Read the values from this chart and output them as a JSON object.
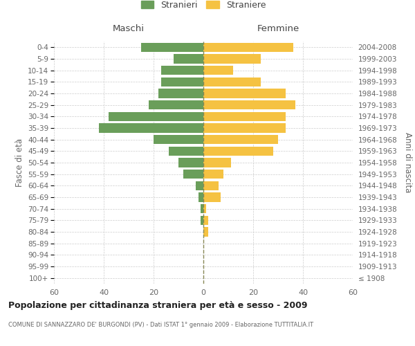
{
  "age_groups": [
    "100+",
    "95-99",
    "90-94",
    "85-89",
    "80-84",
    "75-79",
    "70-74",
    "65-69",
    "60-64",
    "55-59",
    "50-54",
    "45-49",
    "40-44",
    "35-39",
    "30-34",
    "25-29",
    "20-24",
    "15-19",
    "10-14",
    "5-9",
    "0-4"
  ],
  "birth_years": [
    "≤ 1908",
    "1909-1913",
    "1914-1918",
    "1919-1923",
    "1924-1928",
    "1929-1933",
    "1934-1938",
    "1939-1943",
    "1944-1948",
    "1949-1953",
    "1954-1958",
    "1959-1963",
    "1964-1968",
    "1969-1973",
    "1974-1978",
    "1979-1983",
    "1984-1988",
    "1989-1993",
    "1994-1998",
    "1999-2003",
    "2004-2008"
  ],
  "maschi": [
    0,
    0,
    0,
    0,
    0,
    1,
    1,
    2,
    3,
    8,
    10,
    14,
    20,
    42,
    38,
    22,
    18,
    17,
    17,
    12,
    25
  ],
  "femmine": [
    0,
    0,
    0,
    0,
    2,
    2,
    1,
    7,
    6,
    8,
    11,
    28,
    30,
    33,
    33,
    37,
    33,
    23,
    12,
    23,
    36
  ],
  "color_maschi": "#6a9e5a",
  "color_femmine": "#f5c242",
  "xlim": 60,
  "title": "Popolazione per cittadinanza straniera per età e sesso - 2009",
  "subtitle": "COMUNE DI SANNAZZARO DE' BURGONDI (PV) - Dati ISTAT 1° gennaio 2009 - Elaborazione TUTTITALIA.IT",
  "ylabel_left": "Fasce di età",
  "ylabel_right": "Anni di nascita",
  "xlabel_left": "Maschi",
  "xlabel_right": "Femmine",
  "legend_maschi": "Stranieri",
  "legend_femmine": "Straniere",
  "background_color": "#ffffff",
  "grid_color": "#cccccc",
  "dashed_line_color": "#888855"
}
